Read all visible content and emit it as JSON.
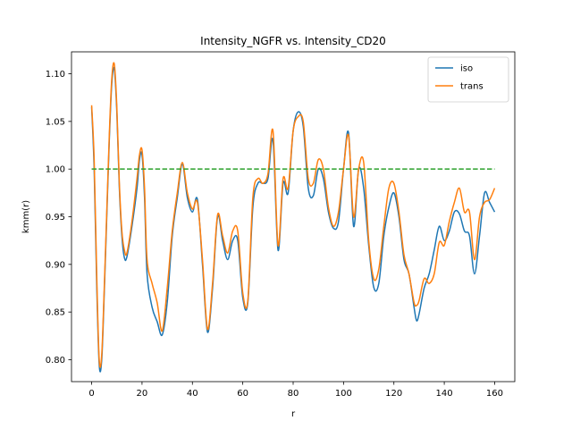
{
  "chart_data": {
    "type": "line",
    "title": "Intensity_NGFR vs. Intensity_CD20",
    "xlabel": "r",
    "ylabel": "kmm(r)",
    "xlim": [
      -8,
      168
    ],
    "ylim": [
      0.777,
      1.123
    ],
    "xticks": [
      0,
      20,
      40,
      60,
      80,
      100,
      120,
      140,
      160
    ],
    "xtick_labels": [
      "0",
      "20",
      "40",
      "60",
      "80",
      "100",
      "120",
      "140",
      "160"
    ],
    "yticks": [
      0.8,
      0.85,
      0.9,
      0.95,
      1.0,
      1.05,
      1.1
    ],
    "ytick_labels": [
      "0.80",
      "0.85",
      "0.90",
      "0.95",
      "1.00",
      "1.05",
      "1.10"
    ],
    "grid": false,
    "legend_position": "upper right",
    "series": [
      {
        "name": "iso",
        "color": "#1f77b4",
        "style": "solid",
        "x": [
          0,
          1,
          2,
          3,
          4,
          5,
          6,
          7,
          8,
          9,
          10,
          11,
          12,
          13,
          14,
          16,
          18,
          19,
          20,
          21,
          22,
          24,
          26,
          28,
          30,
          32,
          34,
          36,
          38,
          40,
          42,
          44,
          46,
          48,
          50,
          52,
          54,
          56,
          58,
          60,
          62,
          64,
          66,
          68,
          70,
          72,
          74,
          76,
          78,
          80,
          82,
          84,
          86,
          88,
          90,
          92,
          94,
          96,
          98,
          100,
          102,
          104,
          106,
          108,
          110,
          112,
          114,
          116,
          118,
          120,
          122,
          124,
          126,
          128,
          129,
          130,
          132,
          134,
          136,
          138,
          140,
          142,
          144,
          146,
          148,
          150,
          152,
          154,
          156,
          158,
          160
        ],
        "y": [
          1.065,
          1.0,
          0.88,
          0.795,
          0.8,
          0.87,
          0.95,
          1.03,
          1.09,
          1.105,
          1.06,
          0.98,
          0.93,
          0.907,
          0.908,
          0.94,
          0.98,
          1.01,
          1.015,
          0.97,
          0.89,
          0.855,
          0.84,
          0.826,
          0.86,
          0.93,
          0.97,
          1.005,
          0.97,
          0.955,
          0.968,
          0.9,
          0.829,
          0.875,
          0.95,
          0.925,
          0.905,
          0.925,
          0.925,
          0.865,
          0.86,
          0.96,
          0.985,
          0.985,
          0.99,
          1.03,
          0.915,
          0.985,
          0.975,
          1.04,
          1.06,
          1.045,
          0.98,
          0.972,
          1.0,
          0.99,
          0.955,
          0.938,
          0.945,
          1.0,
          1.038,
          0.94,
          1.0,
          0.98,
          0.92,
          0.876,
          0.88,
          0.93,
          0.96,
          0.975,
          0.95,
          0.905,
          0.89,
          0.855,
          0.841,
          0.848,
          0.875,
          0.89,
          0.915,
          0.94,
          0.925,
          0.935,
          0.955,
          0.953,
          0.935,
          0.93,
          0.89,
          0.93,
          0.975,
          0.965,
          0.955
        ]
      },
      {
        "name": "trans",
        "color": "#ff7f0e",
        "style": "solid",
        "x": [
          0,
          1,
          2,
          3,
          4,
          5,
          6,
          7,
          8,
          9,
          10,
          11,
          12,
          13,
          14,
          16,
          18,
          19,
          20,
          21,
          22,
          24,
          26,
          28,
          30,
          32,
          34,
          36,
          38,
          40,
          42,
          44,
          46,
          48,
          50,
          52,
          54,
          56,
          58,
          60,
          62,
          64,
          66,
          68,
          70,
          72,
          74,
          76,
          78,
          80,
          82,
          84,
          86,
          88,
          90,
          92,
          94,
          96,
          98,
          100,
          102,
          104,
          106,
          108,
          110,
          112,
          114,
          116,
          118,
          120,
          122,
          124,
          126,
          128,
          129,
          130,
          132,
          134,
          136,
          138,
          140,
          142,
          144,
          146,
          148,
          150,
          152,
          154,
          156,
          158,
          160
        ],
        "y": [
          1.067,
          1.01,
          0.89,
          0.8,
          0.805,
          0.875,
          0.955,
          1.035,
          1.095,
          1.11,
          1.065,
          0.985,
          0.935,
          0.915,
          0.912,
          0.945,
          0.99,
          1.015,
          1.02,
          0.98,
          0.905,
          0.88,
          0.86,
          0.83,
          0.875,
          0.935,
          0.975,
          1.007,
          0.975,
          0.958,
          0.965,
          0.905,
          0.832,
          0.88,
          0.952,
          0.93,
          0.912,
          0.935,
          0.935,
          0.87,
          0.862,
          0.97,
          0.99,
          0.985,
          0.995,
          1.04,
          0.92,
          0.99,
          0.98,
          1.04,
          1.055,
          1.05,
          0.99,
          0.985,
          1.01,
          1.0,
          0.96,
          0.94,
          0.955,
          1.0,
          1.035,
          0.95,
          1.0,
          1.007,
          0.925,
          0.885,
          0.895,
          0.94,
          0.98,
          0.985,
          0.955,
          0.91,
          0.89,
          0.86,
          0.857,
          0.862,
          0.885,
          0.88,
          0.89,
          0.923,
          0.92,
          0.945,
          0.965,
          0.98,
          0.955,
          0.955,
          0.905,
          0.95,
          0.965,
          0.968,
          0.98
        ]
      },
      {
        "name": "",
        "color": "#2ca02c",
        "style": "dashed",
        "x": [
          0,
          160
        ],
        "y": [
          1.0,
          1.0
        ]
      }
    ]
  }
}
